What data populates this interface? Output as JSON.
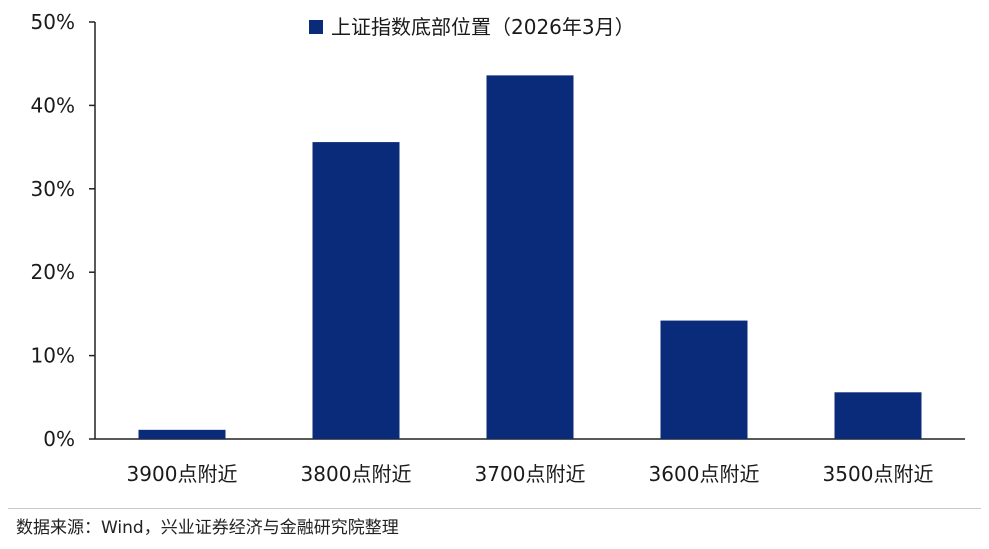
{
  "chart_data": {
    "type": "bar",
    "title": "",
    "legend": {
      "label": "上证指数底部位置（2026年3月）",
      "position": "top-center"
    },
    "categories": [
      "3900点附近",
      "3800点附近",
      "3700点附近",
      "3600点附近",
      "3500点附近"
    ],
    "series": [
      {
        "name": "上证指数底部位置（2026年3月）",
        "values": [
          1.1,
          35.6,
          43.6,
          14.2,
          5.6
        ],
        "color": "#0a2a7a"
      }
    ],
    "xlabel": "",
    "ylabel": "",
    "ylim": [
      0,
      50
    ],
    "yticks": [
      0,
      10,
      20,
      30,
      40,
      50
    ],
    "ytick_labels": [
      "0%",
      "10%",
      "20%",
      "30%",
      "40%",
      "50%"
    ],
    "grid": false
  },
  "source": "数据来源：Wind，兴业证券经济与金融研究院整理"
}
